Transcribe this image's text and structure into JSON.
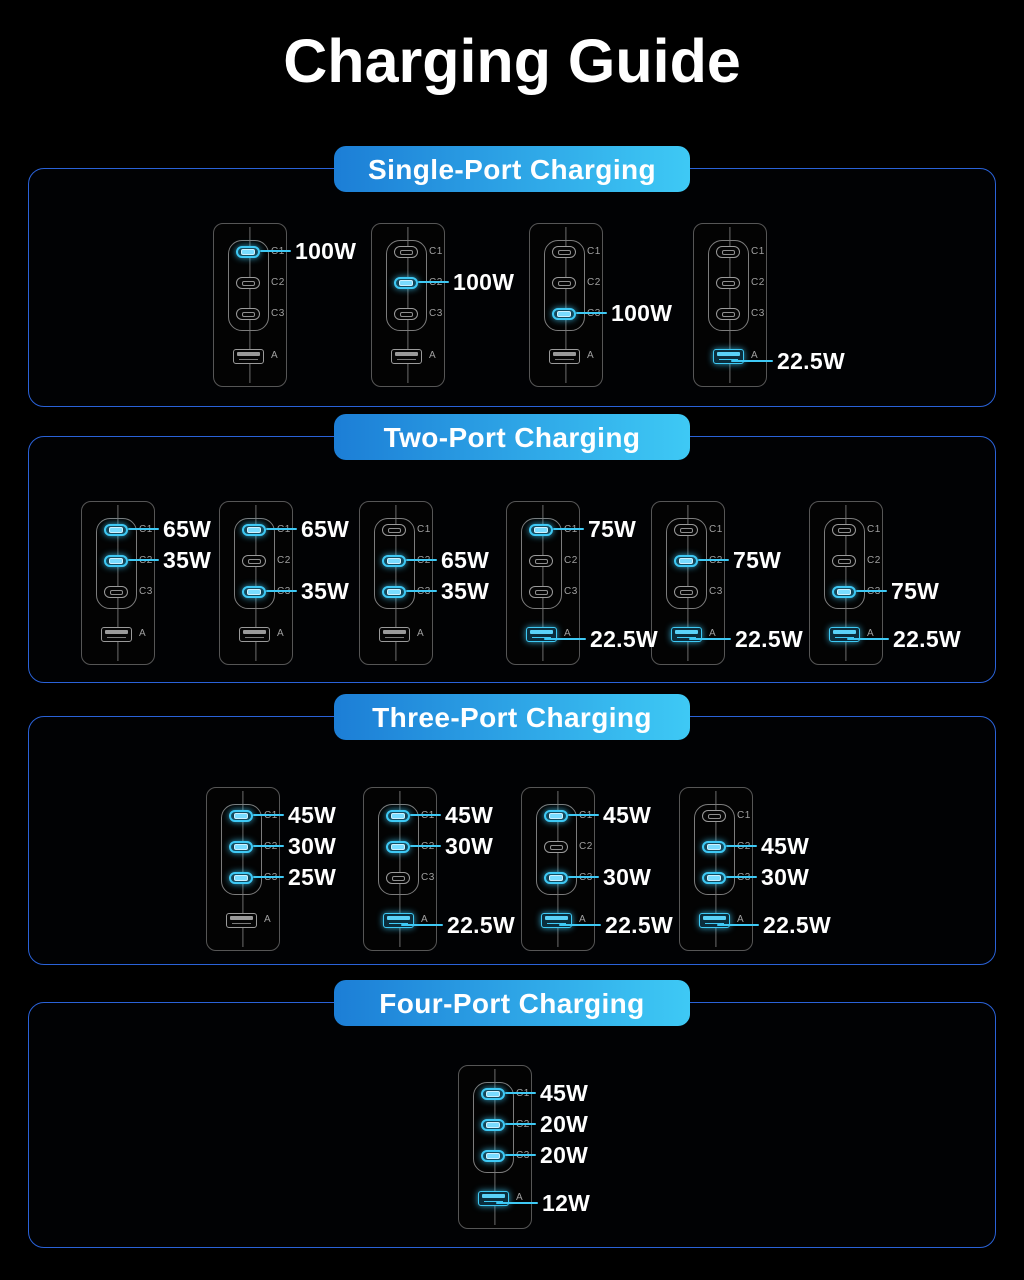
{
  "page": {
    "title": "Charging Guide"
  },
  "ports": [
    "C1",
    "C2",
    "C3",
    "A"
  ],
  "colors": {
    "background": "#000000",
    "highlight_cyan": "#3ec9f5",
    "pill_gradient_start": "#1c7ed6",
    "pill_gradient_end": "#3ec9f5",
    "section_border": "#2a62d8",
    "charger_outline": "#565656",
    "port_outline": "#9a9a9a",
    "port_label_text": "#a0a0a0",
    "watt_text": "#ffffff"
  },
  "sections": [
    {
      "label": "Single-Port Charging",
      "chargers": [
        {
          "active": [
            {
              "port": "C1",
              "watts": "100W"
            }
          ]
        },
        {
          "active": [
            {
              "port": "C2",
              "watts": "100W"
            }
          ]
        },
        {
          "active": [
            {
              "port": "C3",
              "watts": "100W"
            }
          ]
        },
        {
          "active": [
            {
              "port": "A",
              "watts": "22.5W"
            }
          ]
        }
      ]
    },
    {
      "label": "Two-Port Charging",
      "chargers": [
        {
          "active": [
            {
              "port": "C1",
              "watts": "65W"
            },
            {
              "port": "C2",
              "watts": "35W"
            }
          ]
        },
        {
          "active": [
            {
              "port": "C1",
              "watts": "65W"
            },
            {
              "port": "C3",
              "watts": "35W"
            }
          ]
        },
        {
          "active": [
            {
              "port": "C2",
              "watts": "65W"
            },
            {
              "port": "C3",
              "watts": "35W"
            }
          ]
        },
        {
          "active": [
            {
              "port": "C1",
              "watts": "75W"
            },
            {
              "port": "A",
              "watts": "22.5W"
            }
          ]
        },
        {
          "active": [
            {
              "port": "C2",
              "watts": "75W"
            },
            {
              "port": "A",
              "watts": "22.5W"
            }
          ]
        },
        {
          "active": [
            {
              "port": "C3",
              "watts": "75W"
            },
            {
              "port": "A",
              "watts": "22.5W"
            }
          ]
        }
      ]
    },
    {
      "label": "Three-Port Charging",
      "chargers": [
        {
          "active": [
            {
              "port": "C1",
              "watts": "45W"
            },
            {
              "port": "C2",
              "watts": "30W"
            },
            {
              "port": "C3",
              "watts": "25W"
            }
          ]
        },
        {
          "active": [
            {
              "port": "C1",
              "watts": "45W"
            },
            {
              "port": "C2",
              "watts": "30W"
            },
            {
              "port": "A",
              "watts": "22.5W"
            }
          ]
        },
        {
          "active": [
            {
              "port": "C1",
              "watts": "45W"
            },
            {
              "port": "C3",
              "watts": "30W"
            },
            {
              "port": "A",
              "watts": "22.5W"
            }
          ]
        },
        {
          "active": [
            {
              "port": "C2",
              "watts": "45W"
            },
            {
              "port": "C3",
              "watts": "30W"
            },
            {
              "port": "A",
              "watts": "22.5W"
            }
          ]
        }
      ]
    },
    {
      "label": "Four-Port Charging",
      "chargers": [
        {
          "active": [
            {
              "port": "C1",
              "watts": "45W"
            },
            {
              "port": "C2",
              "watts": "20W"
            },
            {
              "port": "C3",
              "watts": "20W"
            },
            {
              "port": "A",
              "watts": "12W"
            }
          ]
        }
      ]
    }
  ]
}
